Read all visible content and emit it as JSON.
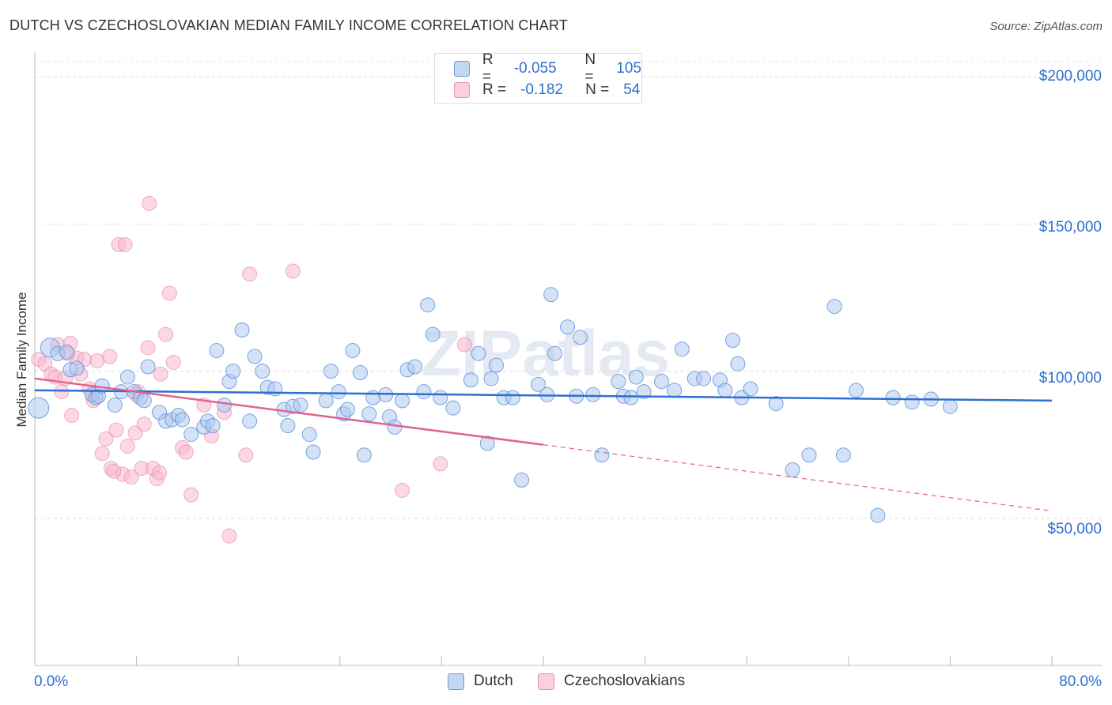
{
  "title": "DUTCH VS CZECHOSLOVAKIAN MEDIAN FAMILY INCOME CORRELATION CHART",
  "source": "Source: ZipAtlas.com",
  "watermark": "ZIPatlas",
  "legend": {
    "rows": [
      {
        "r_label": "R =",
        "r_value": "-0.055",
        "n_label": "N =",
        "n_value": "105",
        "color": "#a9c6f0"
      },
      {
        "r_label": "R =",
        "r_value": "-0.182",
        "n_label": "N =",
        "n_value": "54",
        "color": "#f7b8cc"
      }
    ]
  },
  "bottom_legend": [
    {
      "label": "Dutch",
      "color": "#a9c6f0"
    },
    {
      "label": "Czechoslovakians",
      "color": "#f7b8cc"
    }
  ],
  "chart_data": {
    "type": "scatter",
    "title": "DUTCH VS CZECHOSLOVAKIAN MEDIAN FAMILY INCOME CORRELATION CHART",
    "xlabel": "",
    "ylabel": "Median Family Income",
    "x_tick_labels": {
      "min": "0.0%",
      "max": "80.0%"
    },
    "y_tick_labels": [
      "$200,000",
      "$150,000",
      "$100,000",
      "$50,000"
    ],
    "y_ticks": [
      200000,
      150000,
      100000,
      50000
    ],
    "xlim": [
      0,
      80
    ],
    "ylim": [
      0,
      210000
    ],
    "grid": true,
    "legend_position": "top-center",
    "colors": {
      "dutch": "#5b8fd6",
      "dutch_fill": "#a9c6f0",
      "czech": "#e8739c",
      "czech_fill": "#f7b8cc"
    },
    "series": [
      {
        "name": "Dutch",
        "r": -0.055,
        "n": 105,
        "trend": {
          "x0": 0,
          "y0": 93500,
          "x1": 80,
          "y1": 90000
        },
        "points": [
          [
            0.3,
            87500
          ],
          [
            1.2,
            108000
          ],
          [
            1.8,
            106000
          ],
          [
            2.5,
            106500
          ],
          [
            2.8,
            100500
          ],
          [
            3.3,
            101000
          ],
          [
            4.5,
            92000
          ],
          [
            4.8,
            91000
          ],
          [
            5.0,
            91500
          ],
          [
            5.3,
            95000
          ],
          [
            6.3,
            88500
          ],
          [
            6.8,
            93000
          ],
          [
            7.3,
            98000
          ],
          [
            7.8,
            93000
          ],
          [
            8.3,
            91000
          ],
          [
            8.6,
            90000
          ],
          [
            8.9,
            101500
          ],
          [
            9.8,
            86000
          ],
          [
            10.3,
            83000
          ],
          [
            10.8,
            83500
          ],
          [
            11.3,
            85000
          ],
          [
            11.6,
            83500
          ],
          [
            12.3,
            78500
          ],
          [
            13.3,
            81000
          ],
          [
            13.6,
            83000
          ],
          [
            14.0,
            81500
          ],
          [
            14.3,
            107000
          ],
          [
            14.9,
            88500
          ],
          [
            15.3,
            96500
          ],
          [
            15.6,
            100000
          ],
          [
            16.3,
            114000
          ],
          [
            16.9,
            83000
          ],
          [
            17.3,
            105000
          ],
          [
            17.9,
            100000
          ],
          [
            18.3,
            94500
          ],
          [
            18.9,
            94000
          ],
          [
            19.6,
            87000
          ],
          [
            19.9,
            81500
          ],
          [
            20.3,
            88000
          ],
          [
            20.9,
            88500
          ],
          [
            21.6,
            78500
          ],
          [
            21.9,
            72500
          ],
          [
            22.9,
            90000
          ],
          [
            23.3,
            100000
          ],
          [
            23.9,
            93000
          ],
          [
            24.3,
            85500
          ],
          [
            24.6,
            87000
          ],
          [
            25.0,
            107000
          ],
          [
            25.6,
            99500
          ],
          [
            25.9,
            71500
          ],
          [
            26.3,
            85500
          ],
          [
            26.6,
            91000
          ],
          [
            27.6,
            92000
          ],
          [
            27.9,
            84500
          ],
          [
            28.3,
            81000
          ],
          [
            28.9,
            90000
          ],
          [
            29.3,
            100500
          ],
          [
            29.9,
            101500
          ],
          [
            30.6,
            93000
          ],
          [
            30.9,
            122500
          ],
          [
            31.3,
            112500
          ],
          [
            31.9,
            91000
          ],
          [
            32.9,
            87500
          ],
          [
            34.3,
            97000
          ],
          [
            34.9,
            106000
          ],
          [
            35.6,
            75500
          ],
          [
            35.9,
            97500
          ],
          [
            36.3,
            102000
          ],
          [
            36.9,
            91000
          ],
          [
            37.6,
            91000
          ],
          [
            38.3,
            63000
          ],
          [
            39.6,
            95500
          ],
          [
            40.6,
            126000
          ],
          [
            40.3,
            92000
          ],
          [
            40.9,
            106000
          ],
          [
            41.9,
            115000
          ],
          [
            42.6,
            91500
          ],
          [
            42.9,
            111500
          ],
          [
            43.9,
            92000
          ],
          [
            44.6,
            71500
          ],
          [
            45.9,
            96500
          ],
          [
            46.3,
            91500
          ],
          [
            46.9,
            91000
          ],
          [
            47.3,
            98000
          ],
          [
            47.9,
            93000
          ],
          [
            49.3,
            96500
          ],
          [
            50.3,
            93500
          ],
          [
            50.9,
            107500
          ],
          [
            51.9,
            97500
          ],
          [
            52.6,
            97500
          ],
          [
            53.9,
            97000
          ],
          [
            54.3,
            93500
          ],
          [
            54.9,
            110500
          ],
          [
            55.3,
            102500
          ],
          [
            55.6,
            91000
          ],
          [
            56.3,
            94000
          ],
          [
            58.3,
            89000
          ],
          [
            59.6,
            66500
          ],
          [
            60.9,
            71500
          ],
          [
            62.9,
            122000
          ],
          [
            63.6,
            71500
          ],
          [
            66.3,
            51000
          ],
          [
            64.6,
            93500
          ],
          [
            67.5,
            91000
          ],
          [
            69.0,
            89500
          ],
          [
            70.5,
            90500
          ],
          [
            72.0,
            88000
          ]
        ]
      },
      {
        "name": "Czechoslovakians",
        "r": -0.182,
        "n": 54,
        "trend_solid": {
          "x0": 0,
          "y0": 97500,
          "x1": 40,
          "y1": 75000
        },
        "trend_dashed": {
          "x0": 40,
          "y0": 75000,
          "x1": 80,
          "y1": 52500
        },
        "points": [
          [
            0.3,
            104000
          ],
          [
            0.8,
            102500
          ],
          [
            1.3,
            99000
          ],
          [
            1.6,
            98000
          ],
          [
            1.8,
            109000
          ],
          [
            2.1,
            93000
          ],
          [
            2.4,
            97500
          ],
          [
            2.8,
            109500
          ],
          [
            2.9,
            85000
          ],
          [
            3.3,
            104500
          ],
          [
            3.6,
            99000
          ],
          [
            3.9,
            104000
          ],
          [
            4.3,
            94000
          ],
          [
            4.6,
            90000
          ],
          [
            4.9,
            103500
          ],
          [
            5.3,
            72000
          ],
          [
            5.6,
            77000
          ],
          [
            5.9,
            105000
          ],
          [
            6.0,
            67000
          ],
          [
            6.4,
            80000
          ],
          [
            6.6,
            143000
          ],
          [
            6.9,
            65000
          ],
          [
            7.1,
            143000
          ],
          [
            7.3,
            74500
          ],
          [
            7.6,
            64000
          ],
          [
            7.9,
            79000
          ],
          [
            8.1,
            93000
          ],
          [
            8.4,
            67000
          ],
          [
            8.6,
            82000
          ],
          [
            8.9,
            108000
          ],
          [
            9.0,
            157000
          ],
          [
            9.3,
            67000
          ],
          [
            9.6,
            63500
          ],
          [
            9.8,
            65500
          ],
          [
            9.9,
            99000
          ],
          [
            10.3,
            112500
          ],
          [
            10.6,
            126500
          ],
          [
            10.9,
            103000
          ],
          [
            11.6,
            74000
          ],
          [
            11.9,
            72500
          ],
          [
            12.3,
            58000
          ],
          [
            13.3,
            88500
          ],
          [
            13.9,
            78000
          ],
          [
            14.9,
            86000
          ],
          [
            15.3,
            44000
          ],
          [
            16.6,
            71500
          ],
          [
            16.9,
            133000
          ],
          [
            20.3,
            134000
          ],
          [
            28.9,
            59500
          ],
          [
            31.9,
            68500
          ],
          [
            33.8,
            109000
          ],
          [
            8.0,
            92000
          ],
          [
            6.2,
            66000
          ],
          [
            2.6,
            106000
          ]
        ]
      }
    ]
  }
}
